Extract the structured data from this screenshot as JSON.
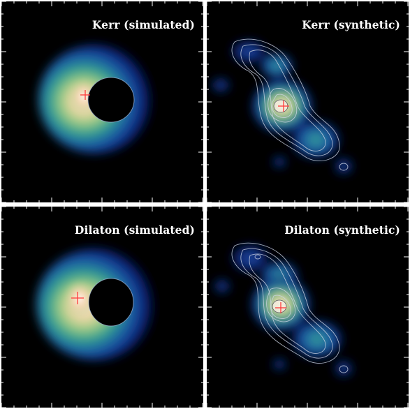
{
  "panels": [
    {
      "title": "Kerr (simulated)"
    },
    {
      "title": "Kerr (synthetic)"
    },
    {
      "title": "Dilaton (simulated)"
    },
    {
      "title": "Dilaton (synthetic)"
    }
  ],
  "colors": {
    "background": "#000000",
    "colormap": [
      "#000000",
      "#0a1a6e",
      "#1a4fa0",
      "#2e9e8e",
      "#8cc47a",
      "#e8d8a0",
      "#f6c8b8",
      "#ffffff"
    ],
    "marker": "#ff3030",
    "contour": "#cfd6e6"
  },
  "icons": [
    "crosshair-marker-icon"
  ]
}
